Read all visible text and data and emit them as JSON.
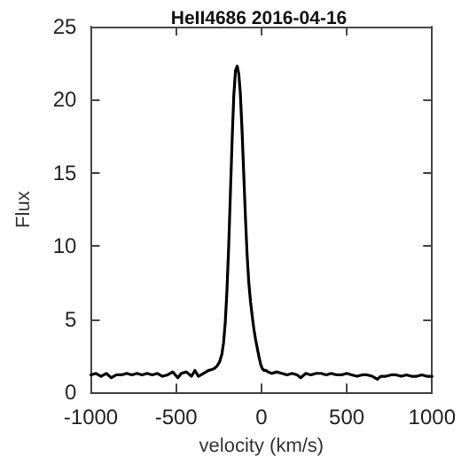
{
  "chart_data": {
    "type": "line",
    "title": "HeII4686 2016-04-16",
    "xlabel": "velocity (km/s)",
    "ylabel": "Flux",
    "xlim": [
      -1000,
      1000
    ],
    "xticks": [
      -1000,
      -500,
      0,
      500,
      1000
    ],
    "ylim": [
      0,
      25
    ],
    "yticks": [
      0,
      5,
      10,
      15,
      20,
      25
    ],
    "grid": false,
    "marker": "none",
    "line_style": "solid",
    "series": [
      {
        "color": "#000000",
        "x": [
          -1000,
          -970,
          -940,
          -910,
          -880,
          -850,
          -820,
          -790,
          -760,
          -730,
          -700,
          -670,
          -640,
          -610,
          -580,
          -550,
          -520,
          -490,
          -470,
          -440,
          -410,
          -390,
          -370,
          -340,
          -310,
          -280,
          -260,
          -245,
          -232,
          -222,
          -212,
          -202,
          -192,
          -182,
          -172,
          -162,
          -152,
          -142,
          -133,
          -124,
          -114,
          -104,
          -94,
          -84,
          -74,
          -64,
          -54,
          -44,
          -34,
          -24,
          -14,
          -4,
          6,
          16,
          26,
          40,
          60,
          90,
          120,
          150,
          180,
          210,
          230,
          260,
          290,
          320,
          350,
          380,
          410,
          440,
          470,
          500,
          530,
          560,
          590,
          620,
          650,
          680,
          700,
          730,
          760,
          790,
          820,
          850,
          880,
          910,
          940,
          970,
          1000
        ],
        "values": [
          1.2,
          1.3,
          1.1,
          1.3,
          1.0,
          1.2,
          1.2,
          1.3,
          1.2,
          1.3,
          1.2,
          1.3,
          1.2,
          1.3,
          1.1,
          1.2,
          1.4,
          1.0,
          1.3,
          1.4,
          1.1,
          1.5,
          1.1,
          1.3,
          1.5,
          1.6,
          1.8,
          2.1,
          2.6,
          3.4,
          4.8,
          7.0,
          10.0,
          13.6,
          17.2,
          20.3,
          22.0,
          22.3,
          21.8,
          20.5,
          18.0,
          15.0,
          12.0,
          9.4,
          7.5,
          6.2,
          5.2,
          4.3,
          3.6,
          3.0,
          2.4,
          1.9,
          1.6,
          1.5,
          1.5,
          1.4,
          1.3,
          1.4,
          1.3,
          1.2,
          1.3,
          1.2,
          1.0,
          1.3,
          1.2,
          1.3,
          1.3,
          1.2,
          1.3,
          1.2,
          1.2,
          1.3,
          1.2,
          1.1,
          1.2,
          1.2,
          1.1,
          0.9,
          1.1,
          1.1,
          1.2,
          1.2,
          1.1,
          1.2,
          1.1,
          1.1,
          1.2,
          1.1,
          1.1
        ]
      }
    ]
  }
}
